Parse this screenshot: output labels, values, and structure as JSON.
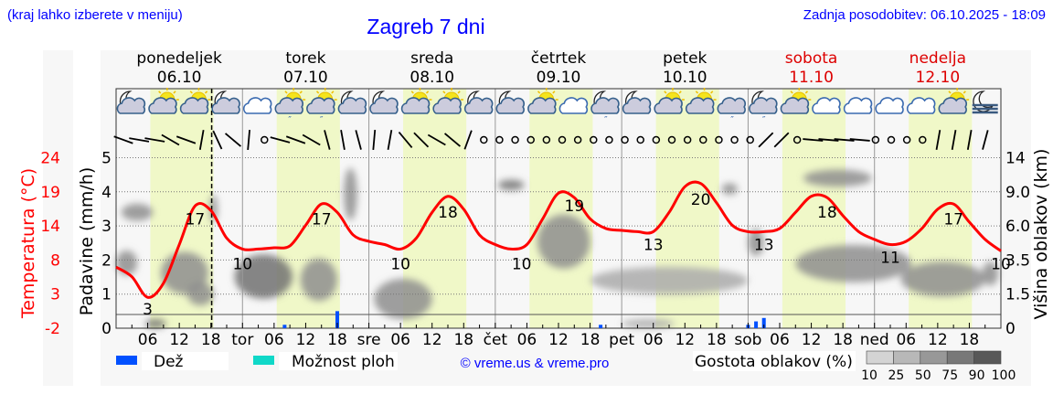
{
  "header": {
    "menu_hint": "(kraj lahko izberete v meniju)",
    "title": "Zagreb 7 dni",
    "updated": "Zadnja posodobitev: 06.10.2025 - 18:09",
    "copyright": "© vreme.us & vreme.pro"
  },
  "colors": {
    "temperature": "#ff0000",
    "rain": "#0050ff",
    "showers": "#10d8c8",
    "daylight": "#f0f8c8",
    "weekend": "#dd0000",
    "link": "#0000ff"
  },
  "chart_data": {
    "type": "meteogram",
    "days": [
      {
        "name": "ponedeljek",
        "date": "06.10",
        "weekend": false
      },
      {
        "name": "torek",
        "date": "07.10",
        "weekend": false
      },
      {
        "name": "sreda",
        "date": "08.10",
        "weekend": false
      },
      {
        "name": "četrtek",
        "date": "09.10",
        "weekend": false
      },
      {
        "name": "petek",
        "date": "10.10",
        "weekend": false
      },
      {
        "name": "sobota",
        "date": "11.10",
        "weekend": true
      },
      {
        "name": "nedelja",
        "date": "12.10",
        "weekend": true
      }
    ],
    "x_tick_labels": [
      "06",
      "12",
      "18",
      "tor",
      "06",
      "12",
      "18",
      "sre",
      "06",
      "12",
      "18",
      "čet",
      "06",
      "12",
      "18",
      "pet",
      "06",
      "12",
      "18",
      "sob",
      "06",
      "12",
      "18",
      "ned",
      "06",
      "12",
      "18"
    ],
    "current_time_hour": 18.15,
    "left_axis_precip": {
      "label": "Padavine (mm/h)",
      "ticks": [
        "0",
        "1",
        "2",
        "3",
        "4",
        "5"
      ],
      "range": [
        0,
        5
      ]
    },
    "left_axis_temp": {
      "label": "Temperatura (°C)",
      "ticks": [
        "-2",
        "3",
        "8",
        "14",
        "19",
        "24"
      ],
      "range": [
        -2,
        24.5
      ]
    },
    "right_axis_cloud": {
      "label": "Višina oblakov (km)",
      "ticks": [
        "0",
        "1.5",
        "3.5",
        "6.0",
        "9.0",
        "14"
      ],
      "values": [
        0,
        1.5,
        3.5,
        6.0,
        9.0,
        14
      ]
    },
    "temperature": {
      "hours": [
        0,
        3,
        6,
        9,
        12,
        15,
        18,
        21,
        24,
        27,
        30,
        33,
        36,
        39,
        42,
        45,
        48,
        51,
        54,
        57,
        60,
        63,
        66,
        69,
        72,
        75,
        78,
        81,
        84,
        87,
        90,
        93,
        96,
        99,
        102,
        105,
        108,
        111,
        114,
        117,
        120,
        123,
        126,
        129,
        132,
        135,
        138,
        141,
        144,
        147,
        150,
        153,
        156,
        159,
        162,
        165,
        168
      ],
      "values": [
        7.5,
        6,
        2.8,
        5,
        11,
        17,
        16.3,
        12,
        10.3,
        10.3,
        10.5,
        10.8,
        14,
        17.3,
        16,
        12.5,
        11.5,
        11,
        10.3,
        12,
        16,
        18.5,
        16.5,
        12.5,
        11,
        10.3,
        11,
        15,
        19,
        18.3,
        15,
        13.5,
        13.2,
        13,
        13,
        16,
        20,
        20.5,
        17.5,
        14,
        13,
        13,
        13.5,
        16,
        18.5,
        18.3,
        15.5,
        13,
        11.8,
        11,
        11.5,
        13.5,
        16.5,
        17.3,
        14.5,
        11.8,
        10
      ]
    },
    "temperature_labels": [
      {
        "hour": 6,
        "value": "3"
      },
      {
        "hour": 15,
        "value": "17"
      },
      {
        "hour": 24,
        "value": "10"
      },
      {
        "hour": 39,
        "value": "17"
      },
      {
        "hour": 54,
        "value": "10"
      },
      {
        "hour": 63,
        "value": "18"
      },
      {
        "hour": 77,
        "value": "10"
      },
      {
        "hour": 87,
        "value": "19"
      },
      {
        "hour": 102,
        "value": "13"
      },
      {
        "hour": 111,
        "value": "20"
      },
      {
        "hour": 123,
        "value": "13"
      },
      {
        "hour": 135,
        "value": "18"
      },
      {
        "hour": 147,
        "value": "11"
      },
      {
        "hour": 159,
        "value": "17"
      },
      {
        "hour": 168,
        "value": "10"
      }
    ],
    "rain": [
      {
        "hour": 32,
        "mm": 0.1
      },
      {
        "hour": 42,
        "mm": 0.5
      },
      {
        "hour": 92,
        "mm": 0.1
      },
      {
        "hour": 120,
        "mm": 0.1
      },
      {
        "hour": 121.5,
        "mm": 0.2
      },
      {
        "hour": 123,
        "mm": 0.3
      }
    ],
    "clouds": [
      {
        "hour": 4,
        "hours": 6,
        "km": 7.2,
        "km_span": 1.5,
        "density": 60
      },
      {
        "hour": 2,
        "hours": 4,
        "km": 3.4,
        "km_span": 1.6,
        "density": 60
      },
      {
        "hour": 13,
        "hours": 9,
        "km": 2.8,
        "km_span": 2.6,
        "density": 55
      },
      {
        "hour": 16,
        "hours": 5,
        "km": 1.6,
        "km_span": 1.2,
        "density": 65
      },
      {
        "hour": 7.5,
        "hours": 4,
        "km": 0.2,
        "km_span": 0.4,
        "density": 75
      },
      {
        "hour": 18.5,
        "hours": 1.5,
        "km": 7.5,
        "km_span": 2.5,
        "density": 50
      },
      {
        "hour": 28,
        "hours": 11,
        "km": 2.6,
        "km_span": 2.6,
        "density": 75
      },
      {
        "hour": 38.5,
        "hours": 7,
        "km": 2.4,
        "km_span": 2.4,
        "density": 70
      },
      {
        "hour": 44.5,
        "hours": 2.5,
        "km": 9.5,
        "km_span": 6,
        "density": 70
      },
      {
        "hour": 54.5,
        "hours": 11,
        "km": 1.4,
        "km_span": 2,
        "density": 65
      },
      {
        "hour": 75,
        "hours": 5,
        "km": 10,
        "km_span": 1.5,
        "density": 80
      },
      {
        "hour": 85,
        "hours": 10,
        "km": 5,
        "km_span": 4,
        "density": 55
      },
      {
        "hour": 105,
        "hours": 30,
        "km": 2.3,
        "km_span": 1.6,
        "density": 40
      },
      {
        "hour": 116.5,
        "hours": 3,
        "km": 9.5,
        "km_span": 1.5,
        "density": 55
      },
      {
        "hour": 121.5,
        "hours": 3,
        "km": 4.8,
        "km_span": 2,
        "density": 60
      },
      {
        "hour": 137,
        "hours": 13,
        "km": 11,
        "km_span": 2.5,
        "density": 60
      },
      {
        "hour": 140,
        "hours": 22,
        "km": 3.4,
        "km_span": 2.4,
        "density": 70
      },
      {
        "hour": 157,
        "hours": 16,
        "km": 2.4,
        "km_span": 2,
        "density": 55
      },
      {
        "hour": 166,
        "hours": 3,
        "km": 2.7,
        "km_span": 1.4,
        "density": 70
      },
      {
        "hour": 101,
        "hours": 10,
        "km": 0.2,
        "km_span": 0.4,
        "density": 30
      }
    ],
    "cloud_legend": {
      "label": "Gostota oblakov (%)",
      "steps": [
        "10",
        "25",
        "50",
        "75",
        "90",
        "100"
      ],
      "colors": [
        "#d4d4d4",
        "#b8b8b8",
        "#989898",
        "#787878",
        "#585858"
      ]
    },
    "legend": [
      {
        "label": "Dež",
        "color": "#0050ff"
      },
      {
        "label": "Možnost ploh",
        "color": "#10d8c8"
      }
    ],
    "weather_icons": [
      "moon-cloud",
      "sun-cloud",
      "sun-cloud",
      "moon-cloud",
      "cloud",
      "sun-cloud-drizzle",
      "sun-cloud-drizzle",
      "moon-cloud",
      "moon-cloud",
      "sun-cloud",
      "sun-cloud",
      "moon-cloud",
      "moon-cloud",
      "sun-cloud",
      "cloud",
      "moon-cloud-drizzle",
      "moon-cloud",
      "sun-cloud",
      "sun-cloud",
      "cloud-drizzle",
      "moon-cloud-drizzle",
      "sun-cloud",
      "cloud",
      "cloud",
      "cloud",
      "cloud",
      "sun-cloud",
      "moon-fog"
    ],
    "wind_directions": [
      -70,
      -80,
      -80,
      -60,
      -70,
      10,
      -25,
      -50,
      5,
      null,
      -75,
      -70,
      -60,
      -15,
      -10,
      -15,
      5,
      10,
      -40,
      -45,
      -60,
      -50,
      20,
      null,
      null,
      null,
      null,
      null,
      null,
      null,
      null,
      null,
      null,
      null,
      null,
      null,
      null,
      null,
      null,
      null,
      null,
      45,
      45,
      null,
      -85,
      -85,
      -85,
      -85,
      null,
      null,
      null,
      null,
      10,
      10,
      10,
      15
    ]
  }
}
